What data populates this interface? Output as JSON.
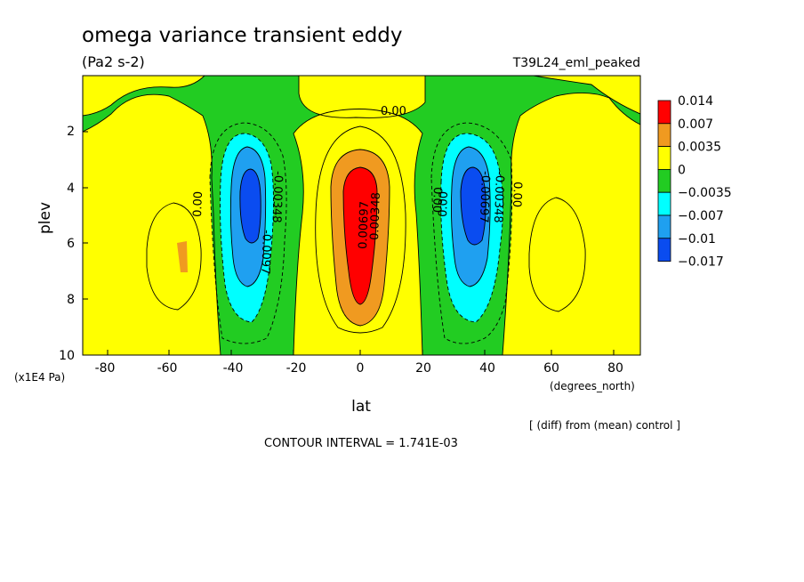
{
  "chart_data": {
    "type": "heatmap",
    "title": "omega variance transient eddy",
    "units": "(Pa2 s-2)",
    "experiment": "T39L24_eml_peaked",
    "xlabel": "lat",
    "x_units": "(degrees_north)",
    "ylabel": "plev",
    "y_units": "(x1E4 Pa)",
    "x_range": [
      -90,
      90
    ],
    "y_range": [
      10,
      0
    ],
    "x_ticks": [
      "-80",
      "-60",
      "-40",
      "-20",
      "0",
      "20",
      "40",
      "60",
      "80"
    ],
    "y_ticks": [
      "2",
      "4",
      "6",
      "8",
      "10"
    ],
    "colorbar": {
      "labels": [
        "0.014",
        "0.007",
        "0.0035",
        "0",
        "−0.0035",
        "−0.007",
        "−0.01",
        "−0.017"
      ],
      "colors": [
        "#ff0000",
        "#f09a20",
        "#ffff00",
        "#22cc22",
        "#00ffff",
        "#1fa0f0",
        "#0a4cf0"
      ]
    },
    "contour_labels": [
      "0.00",
      "0.00",
      "-0.0097",
      "-0.00348",
      "0.00",
      "0.00697",
      "0.00348",
      "0.00",
      "-0.00697",
      "-0.00348",
      "0.00"
    ],
    "note": "[ (diff) from (mean) control ]",
    "contour_interval": "CONTOUR INTERVAL = 1.741E-03",
    "extrema": [
      {
        "lat": 0,
        "plev": 5.5,
        "value": 0.014
      },
      {
        "lat": -35,
        "plev": 4.5,
        "value": -0.013
      },
      {
        "lat": 36,
        "plev": 4.5,
        "value": -0.014
      },
      {
        "lat": -57,
        "plev": 6.4,
        "value": 0.0045
      }
    ]
  }
}
